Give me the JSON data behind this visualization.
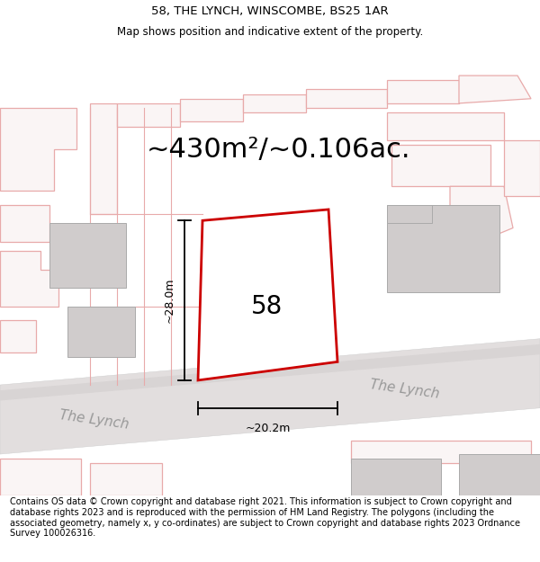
{
  "title_line1": "58, THE LYNCH, WINSCOMBE, BS25 1AR",
  "title_line2": "Map shows position and indicative extent of the property.",
  "area_text": "~430m²/~0.106ac.",
  "label_58": "58",
  "label_width": "~20.2m",
  "label_height": "~28.0m",
  "road_label_left": "The Lynch",
  "road_label_right": "The Lynch",
  "footer_text": "Contains OS data © Crown copyright and database right 2021. This information is subject to Crown copyright and database rights 2023 and is reproduced with the permission of HM Land Registry. The polygons (including the associated geometry, namely x, y co-ordinates) are subject to Crown copyright and database rights 2023 Ordnance Survey 100026316.",
  "bg_color": "#f7f3f3",
  "plot_outline": "#cc0000",
  "plot_fill": "#ffffff",
  "pink_line_color": "#e8aaaa",
  "gray_fill": "#d0cccc",
  "gray_outline": "#aaaaaa",
  "road_fill": "#e8e4e4",
  "road_edge_fill": "#d8d4d4",
  "white": "#ffffff",
  "title_fontsize": 9.5,
  "subtitle_fontsize": 8.5,
  "area_fontsize": 22,
  "label_fontsize": 20,
  "road_label_fontsize": 11,
  "footer_fontsize": 7.0
}
